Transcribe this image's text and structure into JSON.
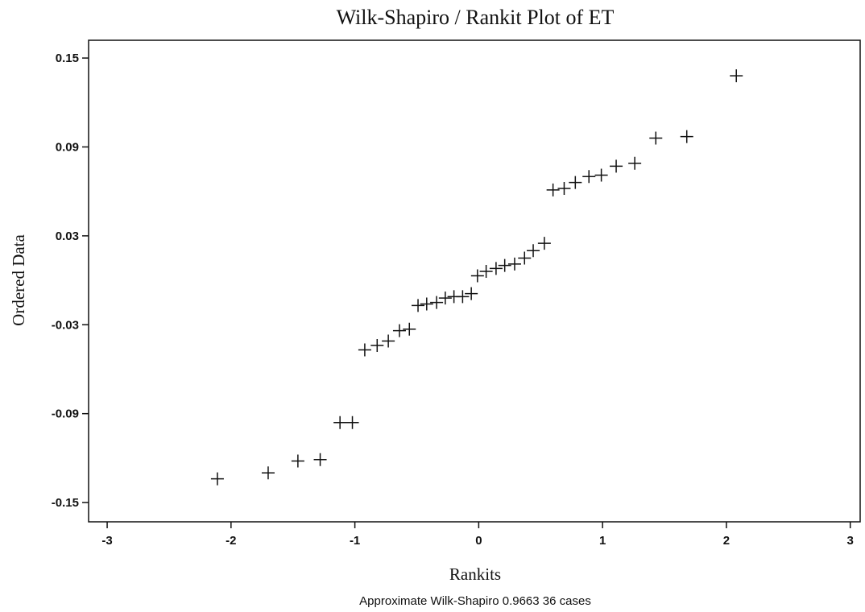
{
  "chart_data": {
    "type": "scatter",
    "title": "Wilk-Shapiro / Rankit Plot of ET",
    "x_label": "Rankits",
    "y_label": "Ordered Data",
    "footnote": "Approximate Wilk-Shapiro 0.9663   36 cases",
    "marker": "plus",
    "color": "#111111",
    "xlim": [
      -3.15,
      3.08
    ],
    "ylim": [
      -0.163,
      0.162
    ],
    "xticks": [
      -3,
      -2,
      -1,
      0,
      1,
      2,
      3
    ],
    "yticks": [
      0.15,
      0.09,
      0.03,
      -0.03,
      -0.09,
      -0.15
    ],
    "x": [
      -2.11,
      -1.7,
      -1.46,
      -1.28,
      -1.12,
      -1.02,
      -0.92,
      -0.82,
      -0.73,
      -0.64,
      -0.56,
      -0.49,
      -0.42,
      -0.34,
      -0.27,
      -0.2,
      -0.13,
      -0.06,
      -0.01,
      0.06,
      0.14,
      0.21,
      0.29,
      0.37,
      0.44,
      0.53,
      0.6,
      0.69,
      0.78,
      0.89,
      0.99,
      1.11,
      1.26,
      1.43,
      1.68,
      2.08
    ],
    "y": [
      -0.134,
      -0.13,
      -0.122,
      -0.121,
      -0.096,
      -0.096,
      -0.047,
      -0.044,
      -0.041,
      -0.034,
      -0.033,
      -0.017,
      -0.016,
      -0.015,
      -0.012,
      -0.011,
      -0.011,
      -0.009,
      0.003,
      0.006,
      0.008,
      0.01,
      0.011,
      0.015,
      0.02,
      0.025,
      0.061,
      0.062,
      0.066,
      0.07,
      0.071,
      0.077,
      0.079,
      0.096,
      0.097,
      0.138
    ]
  }
}
